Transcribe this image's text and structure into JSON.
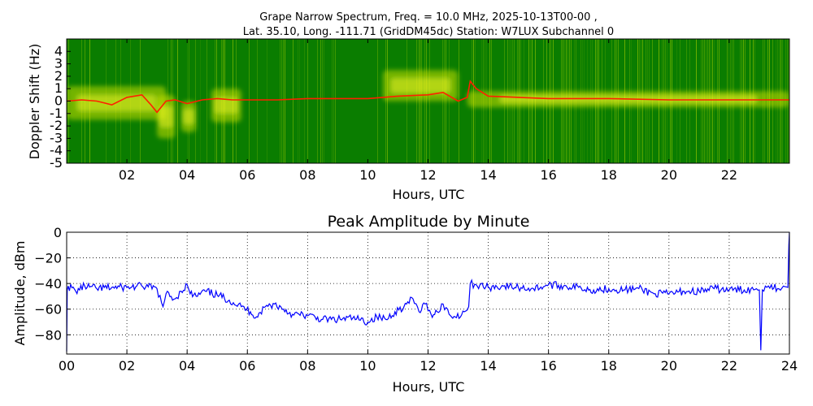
{
  "chart_data": [
    {
      "type": "heatmap",
      "title_line1": "Grape Narrow Spectrum, Freq. = 10.0 MHz, 2025-10-13T00-00 ,",
      "title_line2": "Lat.  35.10, Long. -111.71 (GridDM45dc) Station: W7LUX Subchannel 0",
      "xlabel": "Hours, UTC",
      "ylabel": "Doppler Shift (Hz)",
      "xlim": [
        0,
        24
      ],
      "ylim": [
        -5,
        5
      ],
      "xticks": [
        2,
        4,
        6,
        8,
        10,
        12,
        14,
        16,
        18,
        20,
        22
      ],
      "xtick_labels": [
        "02",
        "04",
        "06",
        "08",
        "10",
        "12",
        "14",
        "16",
        "18",
        "20",
        "22"
      ],
      "yticks": [
        4,
        3,
        2,
        1,
        0,
        -1,
        -2,
        -3,
        -4,
        -5
      ],
      "ytick_labels": [
        "4",
        "3",
        "2",
        "1",
        "0",
        "-1",
        "-2",
        "-3",
        "-4",
        "-5"
      ],
      "colors": {
        "background": "#0a7d00",
        "mid": "#7ab800",
        "noise": "#c8e000",
        "high": "#ffff30",
        "peak": "#ff2000"
      },
      "peak_trace": {
        "x": [
          0,
          0.5,
          1,
          1.5,
          2,
          2.5,
          2.8,
          3,
          3.3,
          3.6,
          4,
          4.5,
          5,
          5.5,
          6,
          7,
          8,
          9,
          10,
          11,
          12,
          12.5,
          13,
          13.3,
          13.4,
          13.6,
          14,
          15,
          16,
          18,
          20,
          22,
          24
        ],
        "y": [
          0,
          0.1,
          0,
          -0.3,
          0.3,
          0.5,
          -0.3,
          -0.9,
          0,
          0.1,
          -0.2,
          0.1,
          0.2,
          0.1,
          0.1,
          0.1,
          0.2,
          0.2,
          0.2,
          0.4,
          0.5,
          0.7,
          0,
          0.3,
          1.6,
          1,
          0.4,
          0.3,
          0.2,
          0.2,
          0.1,
          0.1,
          0.1
        ]
      },
      "bright_regions": [
        {
          "x0": 0,
          "x1": 3.3,
          "y0": -1.5,
          "y1": 1.2
        },
        {
          "x0": 3.0,
          "x1": 3.6,
          "y0": -3,
          "y1": 0.5
        },
        {
          "x0": 3.8,
          "x1": 4.3,
          "y0": -2.5,
          "y1": 0
        },
        {
          "x0": 4.8,
          "x1": 5.8,
          "y0": -1.7,
          "y1": 1
        },
        {
          "x0": 10.5,
          "x1": 13,
          "y0": 0,
          "y1": 2.5
        },
        {
          "x0": 13.3,
          "x1": 24,
          "y0": -0.5,
          "y1": 0.8
        }
      ]
    },
    {
      "type": "line",
      "title": "Peak Amplitude by Minute",
      "xlabel": "Hours, UTC",
      "ylabel": "Amplitude, dBm",
      "xlim": [
        0,
        24
      ],
      "ylim": [
        -95,
        0
      ],
      "grid": true,
      "xticks": [
        0,
        2,
        4,
        6,
        8,
        10,
        12,
        14,
        16,
        18,
        20,
        22,
        24
      ],
      "xtick_labels": [
        "00",
        "02",
        "04",
        "06",
        "08",
        "10",
        "12",
        "14",
        "16",
        "18",
        "20",
        "22",
        "24"
      ],
      "yticks": [
        0,
        -20,
        -40,
        -60,
        -80
      ],
      "ytick_labels": [
        "0",
        "−20",
        "−40",
        "−60",
        "−80"
      ],
      "line_color": "#0000ff",
      "series": [
        {
          "x": [
            0,
            0.02,
            0.05,
            0.3,
            0.6,
            1,
            1.5,
            2,
            2.5,
            3,
            3.15,
            3.2,
            3.3,
            3.6,
            3.8,
            4,
            4.1,
            4.3,
            4.6,
            5,
            5.4,
            5.8,
            6.1,
            6.3,
            6.6,
            6.9,
            7.2,
            7.5,
            8,
            8.5,
            9,
            9.5,
            10,
            10.3,
            10.6,
            10.9,
            11.2,
            11.5,
            11.7,
            11.9,
            12.1,
            12.3,
            12.5,
            12.7,
            12.9,
            13.2,
            13.35,
            13.4,
            13.6,
            14,
            14.5,
            15,
            15.5,
            16,
            16.5,
            17,
            17.5,
            18,
            18.5,
            19,
            19.5,
            20,
            20.5,
            21,
            21.5,
            22,
            22.5,
            22.9,
            23.0,
            23.05,
            23.1,
            23.2,
            23.4,
            23.6,
            23.8,
            23.95,
            23.98,
            24
          ],
          "y": [
            -93,
            -45,
            -42,
            -46,
            -42,
            -44,
            -43,
            -43,
            -42,
            -44,
            -55,
            -58,
            -48,
            -52,
            -46,
            -41,
            -48,
            -50,
            -46,
            -49,
            -53,
            -58,
            -62,
            -66,
            -58,
            -56,
            -60,
            -64,
            -65,
            -68,
            -68,
            -67,
            -70,
            -66,
            -68,
            -62,
            -58,
            -52,
            -62,
            -56,
            -64,
            -62,
            -56,
            -64,
            -66,
            -62,
            -58,
            -40,
            -41,
            -43,
            -42,
            -43,
            -44,
            -41,
            -42,
            -43,
            -45,
            -44,
            -45,
            -44,
            -48,
            -48,
            -46,
            -46,
            -44,
            -45,
            -45,
            -44,
            -45,
            -92,
            -45,
            -42,
            -41,
            -44,
            -42,
            -43,
            -10,
            0
          ]
        }
      ]
    }
  ]
}
